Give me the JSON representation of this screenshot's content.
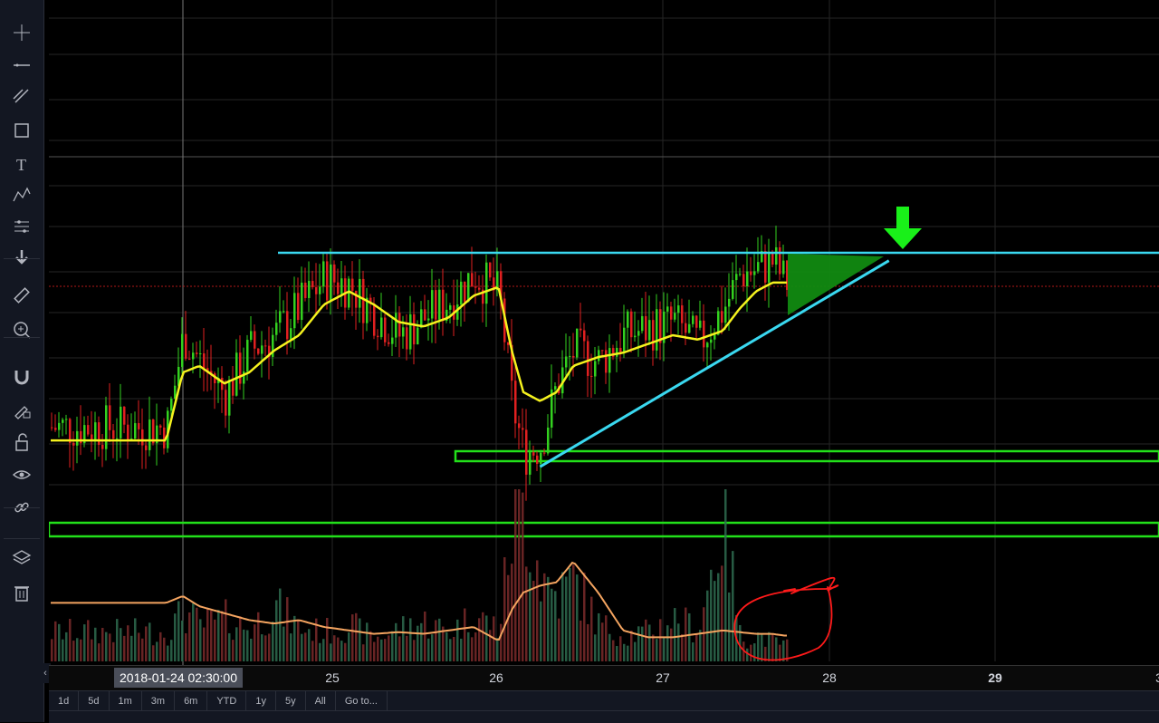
{
  "toolbar": {
    "items": [
      {
        "name": "crosshair-icon"
      },
      {
        "name": "trend-line-icon"
      },
      {
        "name": "fib-tool-icon"
      },
      {
        "name": "rectangle-icon"
      },
      {
        "name": "text-icon"
      },
      {
        "name": "pattern-icon"
      },
      {
        "name": "prediction-icon"
      },
      {
        "name": "arrow-down-icon"
      },
      {
        "name": "ruler-icon"
      },
      {
        "name": "zoom-in-icon"
      },
      {
        "name": "magnet-icon"
      },
      {
        "name": "lock-drawing-icon"
      },
      {
        "name": "unlock-icon"
      },
      {
        "name": "eye-icon"
      },
      {
        "name": "link-icon"
      },
      {
        "name": "layers-icon"
      },
      {
        "name": "trash-icon"
      }
    ]
  },
  "axis": {
    "crosshair_label": "2018-01-24 02:30:00",
    "labels": [
      "25",
      "26",
      "27",
      "28",
      "29",
      "3"
    ]
  },
  "range_buttons": [
    "1d",
    "5d",
    "1m",
    "3m",
    "6m",
    "YTD",
    "1y",
    "5y",
    "All",
    "Go to..."
  ],
  "colors": {
    "up": "#33d11f",
    "down": "#e02020",
    "ma": "#f5f21e",
    "trendline": "#3ad8f0",
    "support": "#22e01a",
    "volume_ma": "#f4a460",
    "annotation": "#ff1a1a",
    "arrow": "#19f019"
  },
  "chart_data": {
    "type": "candlestick",
    "x_ticks": [
      "25",
      "26",
      "27",
      "28",
      "29"
    ],
    "x": [
      24.0,
      24.1,
      24.2,
      24.35,
      24.5,
      24.65,
      24.8,
      24.95,
      25.1,
      25.25,
      25.4,
      25.55,
      25.7,
      25.85,
      26.0,
      26.08,
      26.15,
      26.25,
      26.35,
      26.45,
      26.6,
      26.75,
      26.9,
      27.05,
      27.2,
      27.35,
      27.45,
      27.55,
      27.65,
      27.72
    ],
    "close": [
      0.2,
      0.62,
      0.5,
      0.35,
      0.55,
      0.62,
      0.75,
      0.88,
      0.85,
      0.72,
      0.62,
      0.7,
      0.78,
      0.9,
      0.8,
      0.3,
      0.08,
      0.12,
      0.4,
      0.55,
      0.5,
      0.62,
      0.65,
      0.68,
      0.58,
      0.74,
      0.9,
      0.92,
      0.96,
      0.86
    ],
    "ma": [
      0.14,
      0.45,
      0.48,
      0.4,
      0.45,
      0.55,
      0.62,
      0.76,
      0.82,
      0.76,
      0.68,
      0.66,
      0.7,
      0.8,
      0.84,
      0.55,
      0.36,
      0.32,
      0.36,
      0.48,
      0.52,
      0.54,
      0.58,
      0.62,
      0.6,
      0.64,
      0.74,
      0.82,
      0.86,
      0.86
    ],
    "volume": [
      0.18,
      0.3,
      0.22,
      0.26,
      0.2,
      0.34,
      0.2,
      0.18,
      0.22,
      0.14,
      0.2,
      0.24,
      0.18,
      0.28,
      0.2,
      0.88,
      0.96,
      0.52,
      0.4,
      0.5,
      0.22,
      0.16,
      0.18,
      0.26,
      0.2,
      0.9,
      0.14,
      0.16,
      0.12,
      0.1
    ],
    "volume_ma": [
      0.34,
      0.38,
      0.32,
      0.28,
      0.24,
      0.22,
      0.24,
      0.2,
      0.18,
      0.16,
      0.17,
      0.16,
      0.18,
      0.2,
      0.12,
      0.3,
      0.4,
      0.44,
      0.46,
      0.58,
      0.4,
      0.18,
      0.14,
      0.14,
      0.16,
      0.18,
      0.17,
      0.16,
      0.16,
      0.15
    ],
    "resistance": 0.96,
    "support_zones": [
      [
        0.05,
        0.08
      ],
      [
        -0.28,
        -0.22
      ]
    ],
    "ascending_trendline": [
      [
        26.25,
        0.02
      ],
      [
        28.35,
        0.96
      ]
    ],
    "grid": true
  }
}
